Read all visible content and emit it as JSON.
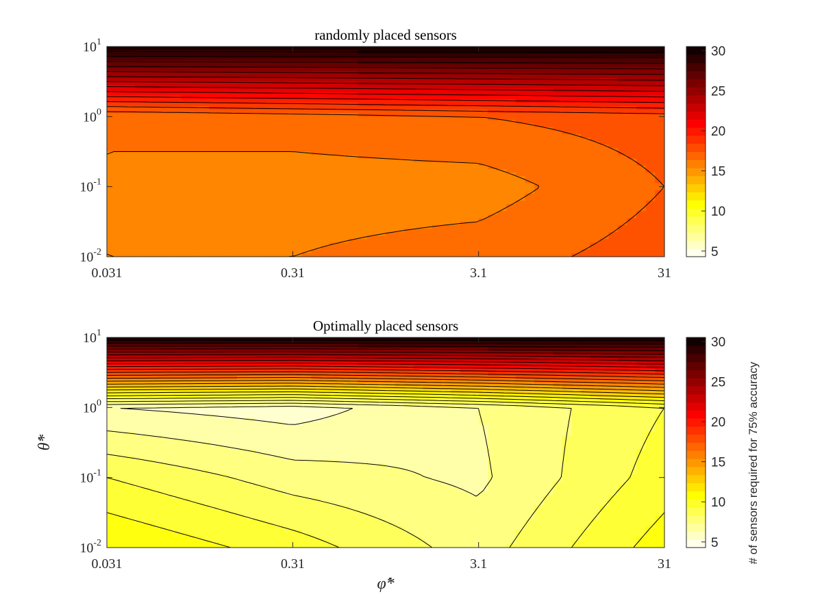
{
  "chart_data": [
    {
      "type": "heatmap",
      "variant": "filled-contour",
      "title": "randomly placed sensors",
      "xlabel": "",
      "ylabel": "",
      "x_scale": "log",
      "y_scale": "log",
      "x": [
        0.031,
        0.31,
        3.1,
        31
      ],
      "x_tick_labels": [
        "0.031",
        "0.31",
        "3.1",
        "31"
      ],
      "y": [
        0.01,
        0.1,
        1,
        10
      ],
      "y_tick_labels": [
        {
          "base": "10",
          "exp": "-2"
        },
        {
          "base": "10",
          "exp": "-1"
        },
        {
          "base": "10",
          "exp": "0"
        },
        {
          "base": "10",
          "exp": "1"
        }
      ],
      "xlim": [
        0.031,
        31
      ],
      "ylim": [
        0.01,
        10
      ],
      "z": [
        [
          16,
          16,
          16.5,
          17.5
        ],
        [
          16,
          15.5,
          15.5,
          17
        ],
        [
          16,
          16.5,
          17,
          17.5
        ],
        [
          30,
          30,
          30,
          30
        ]
      ],
      "z_description": "rows correspond to y values (0.01, 0.1, 1, 10), columns to x values",
      "colormap": "hot (reversed)",
      "contour_step": 1,
      "colorbar": {
        "ticks": [
          5,
          10,
          15,
          20,
          25,
          30
        ],
        "range": [
          4.3,
          30.5
        ],
        "label": ""
      },
      "grid": false
    },
    {
      "type": "heatmap",
      "variant": "filled-contour",
      "title": "Optimally placed sensors",
      "xlabel": "φ̇*",
      "ylabel": "θ̇*",
      "x_scale": "log",
      "y_scale": "log",
      "x": [
        0.031,
        0.31,
        3.1,
        31
      ],
      "x_tick_labels": [
        "0.031",
        "0.31",
        "3.1",
        "31"
      ],
      "y": [
        0.01,
        0.1,
        1,
        10
      ],
      "y_tick_labels": [
        {
          "base": "10",
          "exp": "-2"
        },
        {
          "base": "10",
          "exp": "-1"
        },
        {
          "base": "10",
          "exp": "0"
        },
        {
          "base": "10",
          "exp": "1"
        }
      ],
      "xlim": [
        0.031,
        31
      ],
      "ylim": [
        0.01,
        10
      ],
      "z": [
        [
          11,
          9.5,
          7.5,
          10.5
        ],
        [
          9,
          7.5,
          6.8,
          9.5
        ],
        [
          6,
          5.5,
          7,
          9
        ],
        [
          30,
          30,
          30,
          30
        ]
      ],
      "z_description": "rows correspond to y values (0.01, 0.1, 1, 10), columns to x values",
      "colormap": "hot (reversed)",
      "contour_step": 1,
      "colorbar": {
        "ticks": [
          5,
          10,
          15,
          20,
          25,
          30
        ],
        "range": [
          4.3,
          30.5
        ],
        "label": "# of sensors required for 75% accuracy"
      },
      "grid": false
    }
  ]
}
